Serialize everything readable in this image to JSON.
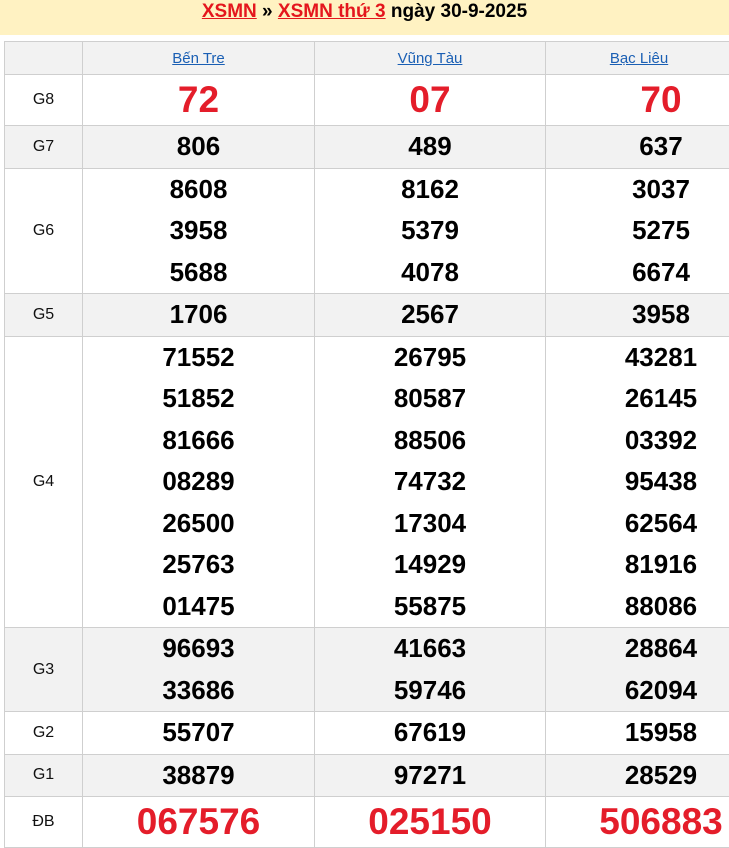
{
  "header": {
    "link1": "XSMN",
    "separator": "»",
    "link2": "XSMN thứ 3",
    "date_text": "ngày 30-9-2025",
    "accent_color": "#e4161d"
  },
  "provinces": [
    "Bến Tre",
    "Vũng Tàu",
    "Bạc Liêu"
  ],
  "prizes": [
    {
      "label": "G8",
      "big": true,
      "values": [
        [
          "72"
        ],
        [
          "07"
        ],
        [
          "70"
        ]
      ]
    },
    {
      "label": "G7",
      "values": [
        [
          "806"
        ],
        [
          "489"
        ],
        [
          "637"
        ]
      ]
    },
    {
      "label": "G6",
      "values": [
        [
          "8608",
          "3958",
          "5688"
        ],
        [
          "8162",
          "5379",
          "4078"
        ],
        [
          "3037",
          "5275",
          "6674"
        ]
      ]
    },
    {
      "label": "G5",
      "values": [
        [
          "1706"
        ],
        [
          "2567"
        ],
        [
          "3958"
        ]
      ]
    },
    {
      "label": "G4",
      "values": [
        [
          "71552",
          "51852",
          "81666",
          "08289",
          "26500",
          "25763",
          "01475"
        ],
        [
          "26795",
          "80587",
          "88506",
          "74732",
          "17304",
          "14929",
          "55875"
        ],
        [
          "43281",
          "26145",
          "03392",
          "95438",
          "62564",
          "81916",
          "88086"
        ]
      ]
    },
    {
      "label": "G3",
      "values": [
        [
          "96693",
          "33686"
        ],
        [
          "41663",
          "59746"
        ],
        [
          "28864",
          "62094"
        ]
      ]
    },
    {
      "label": "G2",
      "values": [
        [
          "55707"
        ],
        [
          "67619"
        ],
        [
          "15958"
        ]
      ]
    },
    {
      "label": "G1",
      "values": [
        [
          "38879"
        ],
        [
          "97271"
        ],
        [
          "28529"
        ]
      ]
    },
    {
      "label": "ĐB",
      "big": true,
      "values": [
        [
          "067576"
        ],
        [
          "025150"
        ],
        [
          "506883"
        ]
      ]
    }
  ]
}
